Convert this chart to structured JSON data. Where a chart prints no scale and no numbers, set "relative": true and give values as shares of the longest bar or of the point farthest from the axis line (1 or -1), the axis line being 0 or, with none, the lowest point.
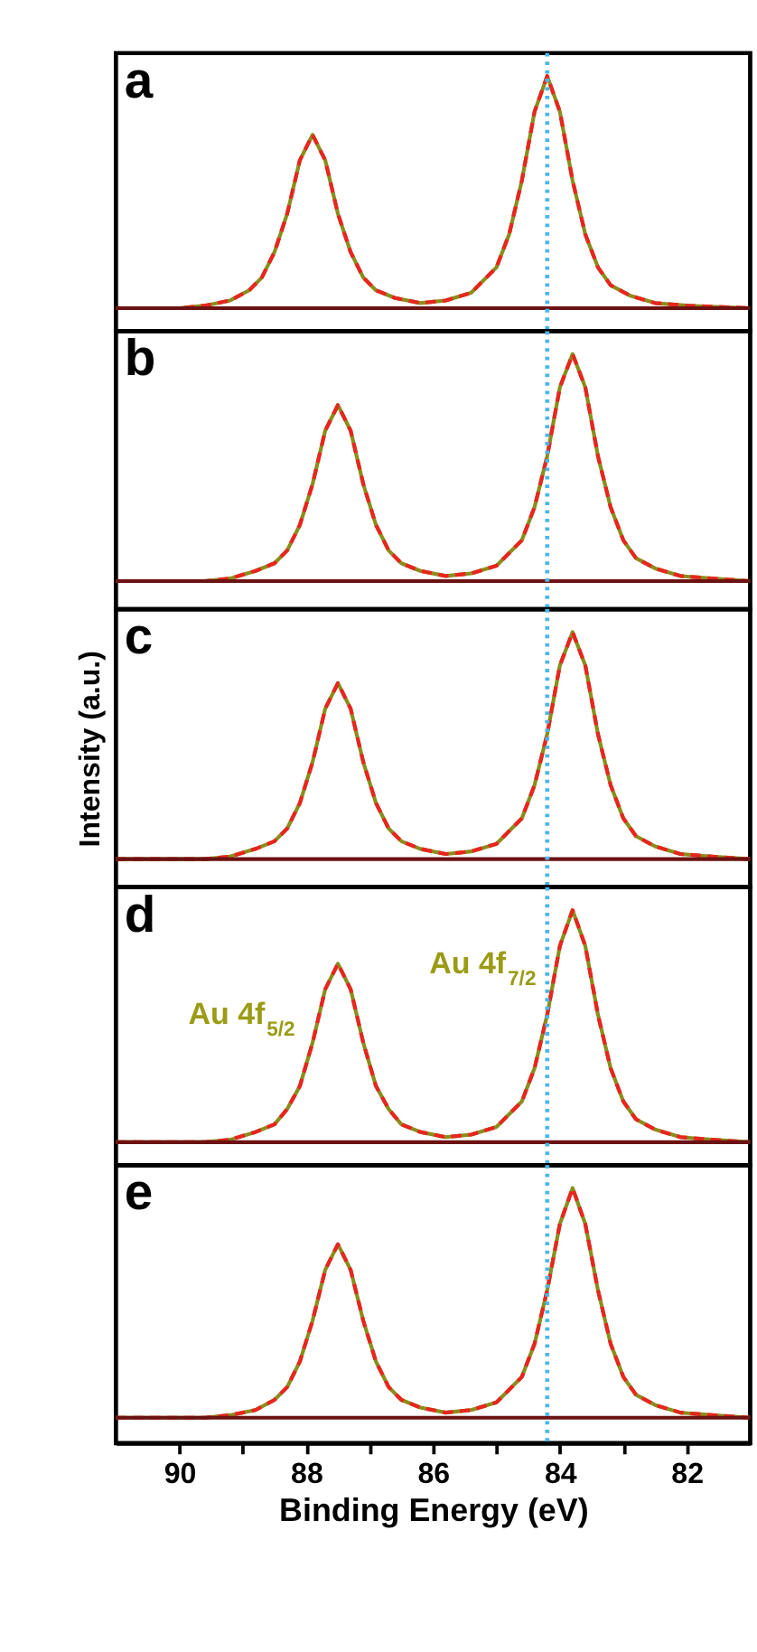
{
  "chart_data": [
    {
      "type": "line",
      "title": "a",
      "relative": true,
      "xlim": [
        91,
        81
      ],
      "tick_labels": false,
      "grid": false,
      "x": [
        91,
        90,
        89.6,
        89.2,
        88.9,
        88.7,
        88.5,
        88.3,
        88.1,
        87.9,
        87.7,
        87.5,
        87.3,
        87.1,
        86.9,
        86.6,
        86.2,
        85.8,
        85.4,
        85.0,
        84.8,
        84.6,
        84.4,
        84.2,
        84.0,
        83.8,
        83.6,
        83.4,
        83.2,
        82.9,
        82.5,
        82.0,
        81
      ],
      "series": [
        {
          "color": "#8c8c1c",
          "line_style": "solid",
          "values": [
            0.09,
            0.09,
            0.1,
            0.12,
            0.16,
            0.21,
            0.31,
            0.46,
            0.67,
            0.77,
            0.67,
            0.46,
            0.31,
            0.21,
            0.16,
            0.13,
            0.11,
            0.12,
            0.15,
            0.25,
            0.38,
            0.59,
            0.86,
            1.0,
            0.86,
            0.59,
            0.38,
            0.25,
            0.18,
            0.14,
            0.11,
            0.1,
            0.09
          ]
        },
        {
          "color": "#e8251f",
          "line_style": "dashed",
          "values": [
            0.09,
            0.09,
            0.1,
            0.12,
            0.16,
            0.21,
            0.31,
            0.46,
            0.67,
            0.77,
            0.67,
            0.46,
            0.31,
            0.21,
            0.16,
            0.13,
            0.11,
            0.12,
            0.15,
            0.25,
            0.38,
            0.59,
            0.86,
            1.0,
            0.86,
            0.59,
            0.38,
            0.25,
            0.18,
            0.14,
            0.11,
            0.1,
            0.09
          ]
        },
        {
          "color": "#6b1212",
          "line_style": "solid",
          "values": [
            0.09,
            0.09,
            0.09,
            0.09,
            0.09,
            0.09,
            0.09,
            0.09,
            0.09,
            0.09,
            0.09,
            0.09,
            0.09,
            0.09,
            0.09,
            0.09,
            0.09,
            0.09,
            0.09,
            0.09,
            0.09,
            0.09,
            0.09,
            0.09,
            0.09,
            0.09,
            0.09,
            0.09,
            0.09,
            0.09,
            0.09,
            0.09,
            0.09
          ]
        }
      ],
      "ref_lines": [
        {
          "axis": "x",
          "value": 84.2,
          "color": "#4db6e6",
          "line_style": "dotted"
        }
      ]
    },
    {
      "type": "line",
      "title": "b",
      "relative": true,
      "xlim": [
        91,
        81
      ],
      "tick_labels": false,
      "grid": false,
      "x": [
        91,
        89.6,
        89.2,
        88.8,
        88.5,
        88.3,
        88.1,
        87.9,
        87.7,
        87.5,
        87.3,
        87.1,
        86.9,
        86.7,
        86.5,
        86.2,
        85.8,
        85.4,
        85.0,
        84.6,
        84.4,
        84.2,
        84.0,
        83.8,
        83.6,
        83.4,
        83.2,
        83.0,
        82.8,
        82.5,
        82.1,
        81.6,
        81
      ],
      "series": [
        {
          "color": "#8c8c1c",
          "line_style": "solid",
          "values": [
            0.11,
            0.11,
            0.12,
            0.15,
            0.18,
            0.23,
            0.33,
            0.49,
            0.7,
            0.8,
            0.7,
            0.49,
            0.33,
            0.23,
            0.18,
            0.15,
            0.13,
            0.14,
            0.17,
            0.27,
            0.4,
            0.6,
            0.87,
            1.0,
            0.87,
            0.6,
            0.4,
            0.27,
            0.2,
            0.16,
            0.13,
            0.12,
            0.11
          ]
        },
        {
          "color": "#e8251f",
          "line_style": "dashed",
          "values": [
            0.11,
            0.11,
            0.12,
            0.15,
            0.18,
            0.23,
            0.33,
            0.49,
            0.7,
            0.8,
            0.7,
            0.49,
            0.33,
            0.23,
            0.18,
            0.15,
            0.13,
            0.14,
            0.17,
            0.27,
            0.4,
            0.6,
            0.87,
            1.0,
            0.87,
            0.6,
            0.4,
            0.27,
            0.2,
            0.16,
            0.13,
            0.12,
            0.11
          ]
        },
        {
          "color": "#6b1212",
          "line_style": "solid",
          "values": [
            0.11,
            0.11,
            0.11,
            0.11,
            0.11,
            0.11,
            0.11,
            0.11,
            0.11,
            0.11,
            0.11,
            0.11,
            0.11,
            0.11,
            0.11,
            0.11,
            0.11,
            0.11,
            0.11,
            0.11,
            0.11,
            0.11,
            0.11,
            0.11,
            0.11,
            0.11,
            0.11,
            0.11,
            0.11,
            0.11,
            0.11,
            0.11,
            0.11
          ]
        }
      ],
      "ref_lines": [
        {
          "axis": "x",
          "value": 84.2,
          "color": "#4db6e6",
          "line_style": "dotted"
        }
      ]
    },
    {
      "type": "line",
      "title": "c",
      "relative": true,
      "ylabel": "Intensity (a.u.)",
      "xlim": [
        91,
        81
      ],
      "tick_labels": false,
      "grid": false,
      "x": [
        91,
        89.6,
        89.2,
        88.8,
        88.5,
        88.3,
        88.1,
        87.9,
        87.7,
        87.5,
        87.3,
        87.1,
        86.9,
        86.7,
        86.5,
        86.2,
        85.8,
        85.4,
        85.0,
        84.6,
        84.4,
        84.2,
        84.0,
        83.8,
        83.6,
        83.4,
        83.2,
        83.0,
        82.8,
        82.5,
        82.1,
        81.6,
        81
      ],
      "series": [
        {
          "color": "#8c8c1c",
          "line_style": "solid",
          "values": [
            0.11,
            0.11,
            0.12,
            0.15,
            0.18,
            0.23,
            0.33,
            0.49,
            0.7,
            0.8,
            0.7,
            0.49,
            0.33,
            0.23,
            0.18,
            0.15,
            0.13,
            0.14,
            0.17,
            0.27,
            0.4,
            0.6,
            0.87,
            1.0,
            0.87,
            0.6,
            0.4,
            0.27,
            0.2,
            0.16,
            0.13,
            0.12,
            0.11
          ]
        },
        {
          "color": "#e8251f",
          "line_style": "dashed",
          "values": [
            0.11,
            0.11,
            0.12,
            0.15,
            0.18,
            0.23,
            0.33,
            0.49,
            0.7,
            0.8,
            0.7,
            0.49,
            0.33,
            0.23,
            0.18,
            0.15,
            0.13,
            0.14,
            0.17,
            0.27,
            0.4,
            0.6,
            0.87,
            1.0,
            0.87,
            0.6,
            0.4,
            0.27,
            0.2,
            0.16,
            0.13,
            0.12,
            0.11
          ]
        },
        {
          "color": "#6b1212",
          "line_style": "solid",
          "values": [
            0.11,
            0.11,
            0.11,
            0.11,
            0.11,
            0.11,
            0.11,
            0.11,
            0.11,
            0.11,
            0.11,
            0.11,
            0.11,
            0.11,
            0.11,
            0.11,
            0.11,
            0.11,
            0.11,
            0.11,
            0.11,
            0.11,
            0.11,
            0.11,
            0.11,
            0.11,
            0.11,
            0.11,
            0.11,
            0.11,
            0.11,
            0.11,
            0.11
          ]
        }
      ],
      "ref_lines": [
        {
          "axis": "x",
          "value": 84.2,
          "color": "#4db6e6",
          "line_style": "dotted"
        }
      ]
    },
    {
      "type": "line",
      "title": "d",
      "relative": true,
      "xlim": [
        91,
        81
      ],
      "tick_labels": false,
      "grid": false,
      "x": [
        91,
        89.6,
        89.2,
        88.8,
        88.5,
        88.3,
        88.1,
        87.9,
        87.7,
        87.5,
        87.3,
        87.1,
        86.9,
        86.7,
        86.5,
        86.2,
        85.8,
        85.4,
        85.0,
        84.6,
        84.4,
        84.2,
        84.0,
        83.8,
        83.6,
        83.4,
        83.2,
        83.0,
        82.8,
        82.5,
        82.1,
        81.6,
        81
      ],
      "series": [
        {
          "color": "#8c8c1c",
          "line_style": "solid",
          "values": [
            0.09,
            0.09,
            0.1,
            0.13,
            0.16,
            0.22,
            0.31,
            0.48,
            0.69,
            0.79,
            0.69,
            0.48,
            0.31,
            0.22,
            0.16,
            0.13,
            0.11,
            0.12,
            0.15,
            0.25,
            0.38,
            0.59,
            0.86,
            1.0,
            0.86,
            0.59,
            0.38,
            0.25,
            0.18,
            0.14,
            0.11,
            0.1,
            0.09
          ]
        },
        {
          "color": "#e8251f",
          "line_style": "dashed",
          "values": [
            0.09,
            0.09,
            0.1,
            0.13,
            0.16,
            0.22,
            0.31,
            0.48,
            0.69,
            0.79,
            0.69,
            0.48,
            0.31,
            0.22,
            0.16,
            0.13,
            0.11,
            0.12,
            0.15,
            0.25,
            0.38,
            0.59,
            0.86,
            1.0,
            0.86,
            0.59,
            0.38,
            0.25,
            0.18,
            0.14,
            0.11,
            0.1,
            0.09
          ]
        },
        {
          "color": "#6b1212",
          "line_style": "solid",
          "values": [
            0.09,
            0.09,
            0.09,
            0.09,
            0.09,
            0.09,
            0.09,
            0.09,
            0.09,
            0.09,
            0.09,
            0.09,
            0.09,
            0.09,
            0.09,
            0.09,
            0.09,
            0.09,
            0.09,
            0.09,
            0.09,
            0.09,
            0.09,
            0.09,
            0.09,
            0.09,
            0.09,
            0.09,
            0.09,
            0.09,
            0.09,
            0.09,
            0.09
          ]
        }
      ],
      "ref_lines": [
        {
          "axis": "x",
          "value": 84.2,
          "color": "#4db6e6",
          "line_style": "dotted"
        }
      ],
      "annotations": [
        "Au 4f$_{5/2}$",
        "Au 4f$_{7/2}$"
      ]
    },
    {
      "type": "line",
      "title": "e",
      "relative": true,
      "xlabel": "Binding Energy (eV)",
      "xlim": [
        91,
        81
      ],
      "tick_labels": "x",
      "grid": false,
      "xticks": [
        90,
        {
          "value": 89,
          "label": null
        },
        88,
        {
          "value": 87,
          "label": null
        },
        86,
        {
          "value": 85,
          "label": null
        },
        84,
        {
          "value": 83,
          "label": null
        },
        82
      ],
      "x": [
        91,
        89.6,
        89.2,
        88.8,
        88.5,
        88.3,
        88.1,
        87.9,
        87.7,
        87.5,
        87.3,
        87.1,
        86.9,
        86.7,
        86.5,
        86.2,
        85.8,
        85.4,
        85.0,
        84.6,
        84.4,
        84.2,
        84.0,
        83.8,
        83.6,
        83.4,
        83.2,
        83.0,
        82.8,
        82.5,
        82.1,
        81.6,
        81
      ],
      "series": [
        {
          "color": "#8c8c1c",
          "line_style": "solid",
          "values": [
            0.1,
            0.1,
            0.11,
            0.13,
            0.17,
            0.22,
            0.32,
            0.48,
            0.68,
            0.78,
            0.68,
            0.48,
            0.32,
            0.22,
            0.17,
            0.14,
            0.12,
            0.13,
            0.16,
            0.26,
            0.39,
            0.6,
            0.86,
            1.0,
            0.86,
            0.6,
            0.39,
            0.26,
            0.19,
            0.15,
            0.12,
            0.11,
            0.1
          ]
        },
        {
          "color": "#e8251f",
          "line_style": "dashed",
          "values": [
            0.1,
            0.1,
            0.11,
            0.13,
            0.17,
            0.22,
            0.32,
            0.48,
            0.68,
            0.78,
            0.68,
            0.48,
            0.32,
            0.22,
            0.17,
            0.14,
            0.12,
            0.13,
            0.16,
            0.26,
            0.39,
            0.6,
            0.86,
            1.0,
            0.86,
            0.6,
            0.39,
            0.26,
            0.19,
            0.15,
            0.12,
            0.11,
            0.1
          ]
        },
        {
          "color": "#6b1212",
          "line_style": "solid",
          "values": [
            0.1,
            0.1,
            0.1,
            0.1,
            0.1,
            0.1,
            0.1,
            0.1,
            0.1,
            0.1,
            0.1,
            0.1,
            0.1,
            0.1,
            0.1,
            0.1,
            0.1,
            0.1,
            0.1,
            0.1,
            0.1,
            0.1,
            0.1,
            0.1,
            0.1,
            0.1,
            0.1,
            0.1,
            0.1,
            0.1,
            0.1,
            0.1,
            0.1
          ]
        }
      ],
      "ref_lines": [
        {
          "axis": "x",
          "value": 84.2,
          "color": "#4db6e6",
          "line_style": "dotted"
        }
      ]
    }
  ]
}
